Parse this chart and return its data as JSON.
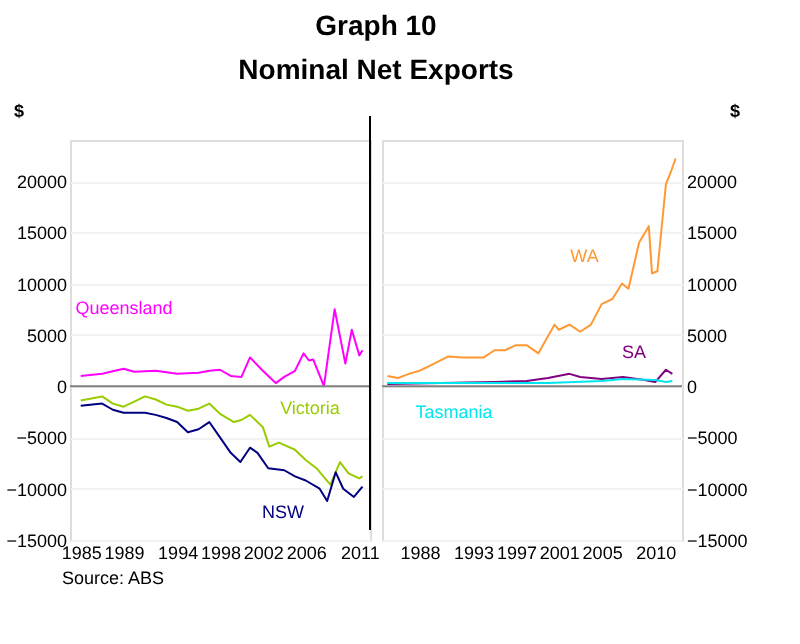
{
  "chart_data": [
    {
      "type": "line",
      "title": "Graph 10",
      "subtitle": "Nominal Net Exports",
      "ylabel": "$",
      "annotations": [
        "Source: ABS"
      ],
      "xlim": [
        1984,
        2012
      ],
      "xticks": [
        1985,
        1989,
        1994,
        1998,
        2002,
        2006,
        2011
      ],
      "ylim": [
        -15000,
        24000
      ],
      "yticks": [
        -15000,
        -10000,
        -5000,
        0,
        5000,
        10000,
        15000,
        20000
      ],
      "grid": "y",
      "legend": false,
      "ref_lines": [
        {
          "axis": "y",
          "value": 0,
          "color": "#808080"
        }
      ],
      "series": [
        {
          "name": "Queensland",
          "color": "#ff00ff",
          "x": [
            1985,
            1987,
            1989,
            1990,
            1992,
            1994,
            1996,
            1997,
            1998,
            1999,
            2000,
            2000.8,
            2002,
            2003.2,
            2004,
            2005,
            2005.8,
            2006.3,
            2006.7,
            2007.7,
            2008.7,
            2009.7,
            2010.3,
            2011,
            2011.3
          ],
          "values": [
            1000,
            1200,
            1700,
            1400,
            1500,
            1200,
            1300,
            1500,
            1600,
            1000,
            900,
            2800,
            1500,
            300,
            900,
            1500,
            3200,
            2500,
            2600,
            0,
            7500,
            2200,
            5500,
            3000,
            3500
          ]
        },
        {
          "name": "Victoria",
          "color": "#99cc00",
          "x": [
            1985,
            1987,
            1988,
            1989,
            1990,
            1991,
            1992,
            1993,
            1994,
            1995,
            1996,
            1997,
            1998,
            1999.3,
            2000,
            2000.8,
            2002,
            2002.6,
            2003.5,
            2005,
            2006,
            2007,
            2008.3,
            2009.2,
            2010,
            2011,
            2011.3
          ],
          "values": [
            -1400,
            -1000,
            -1700,
            -2000,
            -1500,
            -1000,
            -1300,
            -1800,
            -2000,
            -2400,
            -2200,
            -1700,
            -2700,
            -3500,
            -3300,
            -2800,
            -4000,
            -5900,
            -5500,
            -6200,
            -7200,
            -8000,
            -9600,
            -7400,
            -8500,
            -9000,
            -8800
          ]
        },
        {
          "name": "NSW",
          "color": "#000080",
          "x": [
            1985,
            1987,
            1988,
            1989,
            1991,
            1992,
            1993,
            1994,
            1995,
            1996,
            1997,
            1998,
            1999,
            1999.9,
            2000.8,
            2001.5,
            2002.5,
            2004,
            2005,
            2006,
            2007.3,
            2008,
            2008.8,
            2009.5,
            2010.5,
            2011.3
          ],
          "values": [
            -1900,
            -1700,
            -2300,
            -2600,
            -2600,
            -2800,
            -3100,
            -3500,
            -4500,
            -4200,
            -3500,
            -5000,
            -6500,
            -7400,
            -6000,
            -6500,
            -8000,
            -8200,
            -8800,
            -9200,
            -10000,
            -11200,
            -8400,
            -10000,
            -10800,
            -9800
          ]
        }
      ]
    },
    {
      "type": "line",
      "y2label": "$",
      "xlim": [
        1984.5,
        2012.5
      ],
      "xticks": [
        1988,
        1993,
        1997,
        2001,
        2005,
        2010
      ],
      "y2lim": [
        -15000,
        24000
      ],
      "y2ticks": [
        -15000,
        -10000,
        -5000,
        0,
        5000,
        10000,
        15000,
        20000
      ],
      "grid": "y",
      "legend": false,
      "ref_lines": [
        {
          "axis": "y2",
          "value": 0,
          "color": "#808080"
        }
      ],
      "series": [
        {
          "name": "WA",
          "color": "#ff9933",
          "axis": "y2",
          "x": [
            1985,
            1986,
            1987,
            1988,
            1989,
            1990.7,
            1992,
            1994,
            1995,
            1996,
            1997,
            1998,
            1999.1,
            2000.6,
            2001,
            2002,
            2003,
            2004,
            2005,
            2006,
            2006.9,
            2007.5,
            2008.5,
            2009.4,
            2009.7,
            2010.2,
            2011,
            2011.5,
            2011.9
          ],
          "values": [
            1000,
            800,
            1200,
            1500,
            2000,
            2900,
            2800,
            2800,
            3500,
            3500,
            4000,
            4000,
            3200,
            6000,
            5500,
            6000,
            5300,
            6000,
            8000,
            8500,
            10000,
            9500,
            14000,
            15600,
            11000,
            11200,
            19700,
            21000,
            22200
          ]
        },
        {
          "name": "SA",
          "color": "#800080",
          "axis": "y2",
          "x": [
            1985,
            1990,
            1995,
            1998,
            2000,
            2002,
            2003,
            2005,
            2007,
            2009,
            2010,
            2011,
            2011.6
          ],
          "values": [
            200,
            300,
            400,
            500,
            800,
            1200,
            900,
            700,
            900,
            600,
            400,
            1600,
            1200
          ]
        },
        {
          "name": "Tasmania",
          "color": "#00e5ee",
          "axis": "y2",
          "x": [
            1985,
            1990,
            1995,
            2000,
            2005,
            2007,
            2010,
            2011,
            2011.6
          ],
          "values": [
            300,
            300,
            300,
            300,
            500,
            700,
            600,
            400,
            500
          ]
        }
      ]
    }
  ]
}
